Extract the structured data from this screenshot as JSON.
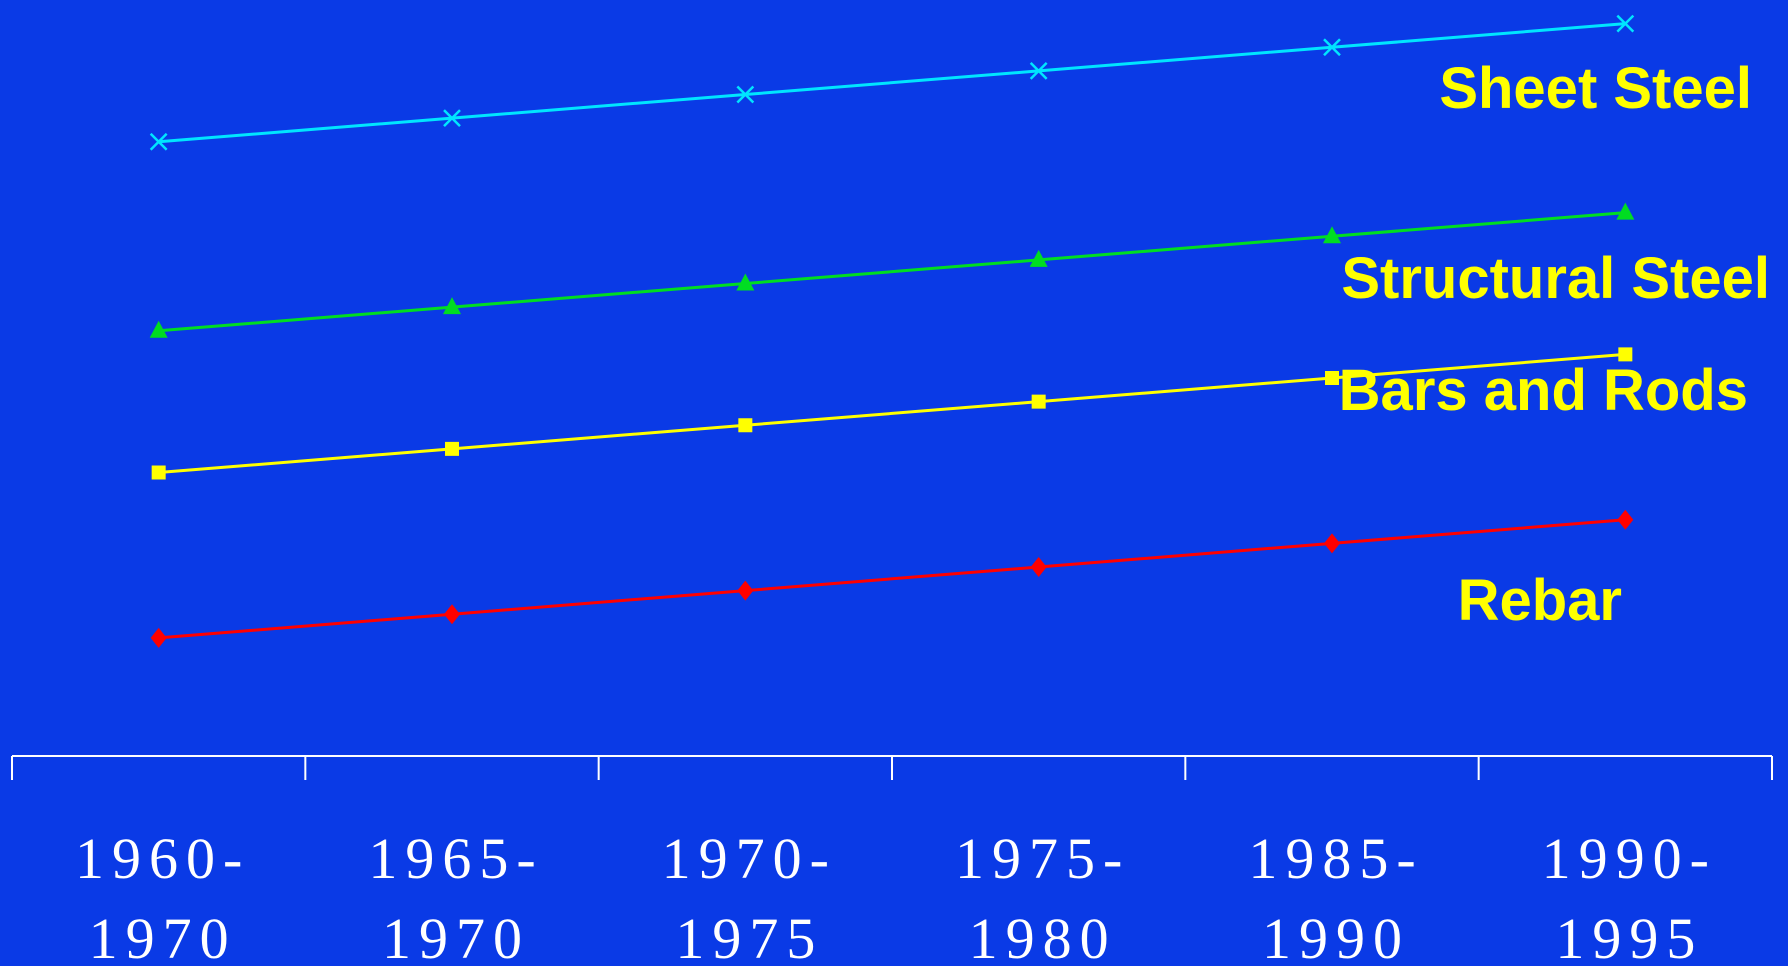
{
  "chart_data": {
    "type": "line",
    "categories": [
      [
        "1960-",
        "1970"
      ],
      [
        "1965-",
        "1970"
      ],
      [
        "1970-",
        "1975"
      ],
      [
        "1975-",
        "1980"
      ],
      [
        "1985-",
        "1990"
      ],
      [
        "1990-",
        "1995"
      ]
    ],
    "series": [
      {
        "name": "Sheet Steel",
        "color": "#00e5ff",
        "marker": "x",
        "values": [
          11.5,
          12.0,
          12.5,
          13.0,
          13.5,
          14.0
        ]
      },
      {
        "name": "Structural Steel",
        "color": "#00dd22",
        "marker": "triangle",
        "values": [
          7.5,
          8.0,
          8.5,
          9.0,
          9.5,
          10.0
        ]
      },
      {
        "name": "Bars and Rods",
        "color": "#ffff00",
        "marker": "square",
        "values": [
          4.5,
          5.0,
          5.5,
          6.0,
          6.5,
          7.0
        ]
      },
      {
        "name": "Rebar",
        "color": "#ff0000",
        "marker": "diamond",
        "values": [
          1.0,
          1.5,
          2.0,
          2.5,
          3.0,
          3.5
        ]
      }
    ],
    "ylim": [
      -1.5,
      14.5
    ],
    "grid": false,
    "legend": "inline-right",
    "background": "#0a3ae6",
    "axis_color": "#ffffff",
    "label_color": "#ffff00"
  }
}
